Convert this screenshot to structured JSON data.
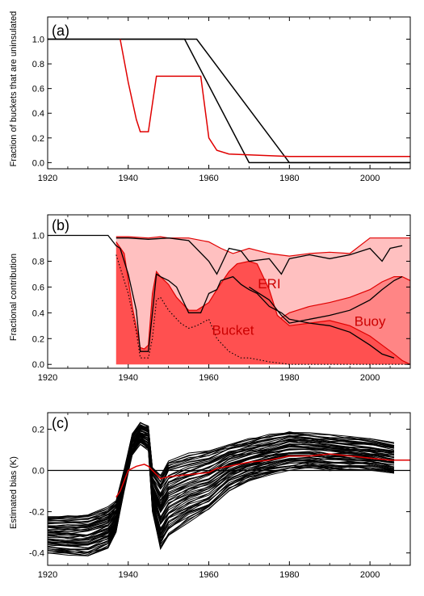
{
  "chart_data": [
    {
      "type": "line",
      "panel_label": "(a)",
      "ylabel": "Fraction of buckets that are uninsulated",
      "xlim": [
        1920,
        2010
      ],
      "ylim": [
        -0.05,
        1.18
      ],
      "x_ticks": [
        1920,
        1940,
        1960,
        1980,
        2000
      ],
      "y_ticks": [
        "0.0",
        "0.2",
        "0.4",
        "0.6",
        "0.8",
        "1.0"
      ],
      "y_tick_values": [
        0,
        0.2,
        0.4,
        0.6,
        0.8,
        1.0
      ],
      "colors": {
        "red": "#e00000",
        "black": "#000000"
      },
      "series": [
        {
          "color": "black",
          "x": [
            1920,
            1954,
            1970,
            2010
          ],
          "y": [
            1,
            1,
            0,
            0
          ]
        },
        {
          "color": "black",
          "x": [
            1920,
            1957,
            1980,
            2010
          ],
          "y": [
            1,
            1,
            0,
            0
          ]
        },
        {
          "color": "red",
          "x": [
            1938,
            1940,
            1942,
            1943,
            1945,
            1947,
            1958,
            1959,
            1960,
            1962,
            1965,
            1980,
            2010
          ],
          "y": [
            1.0,
            0.65,
            0.35,
            0.25,
            0.25,
            0.7,
            0.7,
            0.45,
            0.2,
            0.1,
            0.07,
            0.05,
            0.05
          ]
        }
      ]
    },
    {
      "type": "area",
      "panel_label": "(b)",
      "ylabel": "Fractional contribution",
      "xlim": [
        1920,
        2010
      ],
      "ylim": [
        -0.03,
        1.16
      ],
      "x_ticks": [
        1920,
        1940,
        1960,
        1980,
        2000
      ],
      "y_ticks": [
        "0.0",
        "0.2",
        "0.4",
        "0.6",
        "0.8",
        "1.0"
      ],
      "y_tick_values": [
        0,
        0.2,
        0.4,
        0.6,
        0.8,
        1.0
      ],
      "annotations": [
        {
          "text": "ERI",
          "x": 1975,
          "y": 0.59
        },
        {
          "text": "Bucket",
          "x": 1966,
          "y": 0.23
        },
        {
          "text": "Buoy",
          "x": 2000,
          "y": 0.3
        }
      ],
      "colors": {
        "light": "#ffc0c0",
        "mid": "#ff8585",
        "dark": "#ff5050",
        "line_red": "#e00000"
      },
      "top_band": {
        "x": [
          1937,
          1940,
          1945,
          1948,
          1950,
          1955,
          1960,
          1963,
          1966,
          1970,
          1975,
          1980,
          1985,
          1990,
          1995,
          2000,
          2003,
          2006,
          2010
        ],
        "y": [
          0.99,
          0.99,
          0.98,
          0.99,
          0.98,
          0.98,
          0.95,
          0.9,
          0.86,
          0.9,
          0.86,
          0.84,
          0.86,
          0.87,
          0.86,
          0.98,
          0.98,
          0.98,
          0.98
        ]
      },
      "buoy_band": {
        "x": [
          1975,
          1980,
          1985,
          1990,
          1995,
          2000,
          2003,
          2006,
          2008,
          2010
        ],
        "y": [
          0.3,
          0.4,
          0.45,
          0.48,
          0.52,
          0.58,
          0.64,
          0.68,
          0.68,
          0.65
        ]
      },
      "bucket_band": {
        "x": [
          1937,
          1939,
          1941,
          1943,
          1944,
          1945,
          1946,
          1947,
          1948,
          1950,
          1952,
          1955,
          1957,
          1960,
          1962,
          1965,
          1967,
          1970,
          1972,
          1975,
          1977,
          1980,
          1985,
          1990,
          1995,
          2000,
          2003,
          2006,
          2008,
          2010
        ],
        "y": [
          0.95,
          0.86,
          0.45,
          0.13,
          0.12,
          0.15,
          0.55,
          0.72,
          0.68,
          0.62,
          0.52,
          0.42,
          0.42,
          0.48,
          0.58,
          0.72,
          0.78,
          0.8,
          0.78,
          0.58,
          0.38,
          0.3,
          0.32,
          0.34,
          0.3,
          0.22,
          0.15,
          0.08,
          0.03,
          0.0
        ]
      },
      "line_series": [
        {
          "color": "black",
          "style": "solid",
          "x": [
            1920,
            1935,
            1937,
            1938,
            1940,
            1942,
            1943,
            1945,
            1946,
            1947,
            1948,
            1950,
            1952,
            1955,
            1958,
            1960,
            1962,
            1963,
            1966,
            1968,
            1970,
            1972,
            1975,
            1978,
            1980,
            1985,
            1990,
            1995,
            2000,
            2003,
            2006
          ],
          "y": [
            1.0,
            1.0,
            0.92,
            0.9,
            0.7,
            0.42,
            0.1,
            0.1,
            0.4,
            0.7,
            0.68,
            0.65,
            0.6,
            0.4,
            0.4,
            0.55,
            0.58,
            0.65,
            0.68,
            0.62,
            0.58,
            0.55,
            0.45,
            0.4,
            0.35,
            0.32,
            0.3,
            0.25,
            0.15,
            0.08,
            0.05
          ]
        },
        {
          "color": "black",
          "style": "solid",
          "x": [
            1937,
            1940,
            1945,
            1950,
            1955,
            1960,
            1962,
            1965,
            1968,
            1970,
            1975,
            1978,
            1980,
            1985,
            1990,
            1995,
            2000,
            2003,
            2005,
            2008
          ],
          "y": [
            0.98,
            0.98,
            0.97,
            0.98,
            0.96,
            0.8,
            0.7,
            0.9,
            0.88,
            0.8,
            0.82,
            0.7,
            0.82,
            0.85,
            0.82,
            0.85,
            0.9,
            0.8,
            0.9,
            0.92
          ]
        },
        {
          "color": "black",
          "style": "solid",
          "x": [
            1970,
            1975,
            1978,
            1980,
            1985,
            1990,
            1995,
            2000,
            2003,
            2006,
            2008
          ],
          "y": [
            0.6,
            0.5,
            0.38,
            0.32,
            0.35,
            0.38,
            0.42,
            0.5,
            0.58,
            0.65,
            0.68
          ]
        },
        {
          "color": "black",
          "style": "dotted",
          "x": [
            1937,
            1940,
            1942,
            1943,
            1945,
            1946,
            1947,
            1948,
            1950,
            1953,
            1955,
            1957,
            1960,
            1962,
            1965,
            1968,
            1970,
            1975,
            1980,
            2000,
            2010
          ],
          "y": [
            0.85,
            0.55,
            0.25,
            0.05,
            0.05,
            0.2,
            0.5,
            0.52,
            0.42,
            0.32,
            0.28,
            0.3,
            0.35,
            0.2,
            0.1,
            0.05,
            0.05,
            0.02,
            0.0,
            0.0,
            0.0
          ]
        }
      ]
    },
    {
      "type": "line",
      "panel_label": "(c)",
      "ylabel": "Estimated bias (K)",
      "xlim": [
        1920,
        2010
      ],
      "ylim": [
        -0.46,
        0.28
      ],
      "x_ticks": [
        1920,
        1940,
        1960,
        1980,
        2000
      ],
      "y_ticks": [
        "-0.4",
        "-0.2",
        "0.0",
        "0.2"
      ],
      "y_tick_values": [
        -0.4,
        -0.2,
        0.0,
        0.2
      ],
      "zero_line": true,
      "colors": {
        "ensemble": "#000000",
        "median": "#e00000"
      },
      "ensemble_members": 60,
      "ensemble_envelope": {
        "x": [
          1920,
          1925,
          1930,
          1935,
          1937,
          1939,
          1941,
          1943,
          1945,
          1946,
          1948,
          1950,
          1955,
          1960,
          1965,
          1970,
          1975,
          1980,
          1985,
          1990,
          1995,
          2000,
          2006
        ],
        "low": [
          -0.4,
          -0.41,
          -0.42,
          -0.38,
          -0.3,
          -0.1,
          0.08,
          0.13,
          0.1,
          -0.2,
          -0.38,
          -0.32,
          -0.25,
          -0.2,
          -0.1,
          -0.05,
          -0.02,
          0.0,
          0.01,
          0.0,
          0.0,
          0.0,
          -0.02
        ],
        "high": [
          -0.22,
          -0.22,
          -0.21,
          -0.18,
          -0.15,
          0.0,
          0.18,
          0.23,
          0.22,
          0.02,
          -0.02,
          0.05,
          0.08,
          0.1,
          0.13,
          0.15,
          0.17,
          0.19,
          0.18,
          0.17,
          0.16,
          0.15,
          0.13
        ]
      },
      "median_series": {
        "x": [
          1937,
          1938,
          1939,
          1940,
          1942,
          1944,
          1945,
          1946,
          1947,
          1948,
          1950,
          1955,
          1960,
          1962,
          1965,
          1970,
          1975,
          1980,
          1985,
          1990,
          1995,
          2000,
          2005,
          2008,
          2010
        ],
        "y": [
          -0.13,
          -0.1,
          -0.05,
          0.0,
          0.02,
          0.03,
          0.02,
          0.0,
          -0.02,
          -0.04,
          -0.03,
          -0.02,
          -0.01,
          0.01,
          0.02,
          0.04,
          0.05,
          0.07,
          0.07,
          0.08,
          0.07,
          0.06,
          0.05,
          0.05,
          0.05
        ]
      }
    }
  ]
}
